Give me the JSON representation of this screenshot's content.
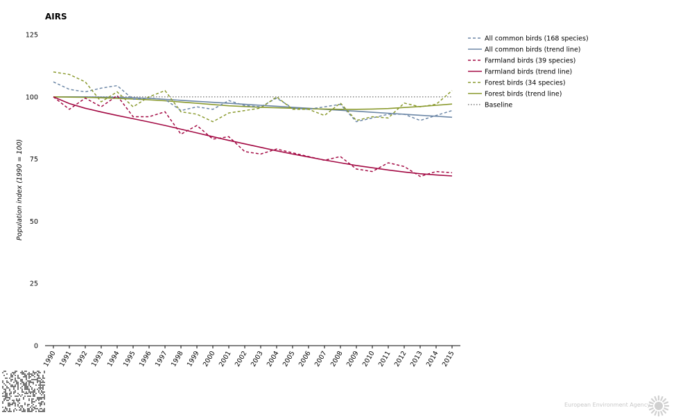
{
  "title": "AIRS",
  "footer": {
    "brand": "European Environment Agency"
  },
  "colors": {
    "all": "#6b86a6",
    "farmland": "#a30943",
    "forest": "#8a9a2e",
    "baseline": "#7a7a7a",
    "axis": "#000000",
    "logo": "#d0d0d0"
  },
  "chart_data": {
    "type": "line",
    "title": "AIRS",
    "xlabel": "",
    "ylabel": "Population index (1990 = 100)",
    "ylim": [
      0,
      125
    ],
    "yticks": [
      0,
      25,
      50,
      75,
      100,
      125
    ],
    "grid": false,
    "legend_position": "right",
    "x": [
      "1990",
      "1991",
      "1992",
      "1993",
      "1994",
      "1995",
      "1996",
      "1997",
      "1998",
      "1999",
      "2000",
      "2001",
      "2002",
      "2003",
      "2004",
      "2005",
      "2006",
      "2007",
      "2008",
      "2009",
      "2010",
      "2011",
      "2012",
      "2013",
      "2014",
      "2015"
    ],
    "series": [
      {
        "name": "All common birds (168 species)",
        "style": "dashed",
        "colorKey": "all",
        "values": [
          106,
          103,
          102,
          103.5,
          104.5,
          99,
          99.5,
          99,
          94.5,
          96,
          95,
          98.5,
          96.5,
          96,
          99.5,
          95.5,
          95,
          96,
          97,
          90,
          91.5,
          93,
          93,
          90.5,
          92.5,
          94.5
        ]
      },
      {
        "name": "All common birds (trend line)",
        "style": "solid",
        "colorKey": "all",
        "values": [
          100,
          100,
          100,
          99.9,
          99.8,
          99.6,
          99.4,
          99.0,
          98.6,
          98.2,
          97.8,
          97.4,
          97.0,
          96.6,
          96.2,
          95.8,
          95.4,
          95.0,
          94.6,
          94.2,
          93.8,
          93.4,
          93.0,
          92.6,
          92.2,
          91.8
        ]
      },
      {
        "name": "Farmland birds (39 species)",
        "style": "dashed",
        "colorKey": "farmland",
        "values": [
          100,
          95,
          99.5,
          96,
          100.5,
          92,
          92,
          94,
          85,
          88.5,
          83,
          84,
          78,
          77,
          79,
          77.5,
          76,
          74.5,
          76,
          71,
          70,
          73.5,
          72,
          68,
          70,
          69.5
        ]
      },
      {
        "name": "Farmland birds (trend line)",
        "style": "solid",
        "colorKey": "farmland",
        "values": [
          100,
          97.3,
          95.4,
          93.9,
          92.5,
          91.2,
          89.9,
          88.5,
          87,
          85.5,
          84,
          82.5,
          81.1,
          79.7,
          78.3,
          77,
          75.8,
          74.6,
          73.5,
          72.4,
          71.5,
          70.6,
          69.8,
          69.1,
          68.6,
          68.2
        ]
      },
      {
        "name": "Forest birds (34 species)",
        "style": "dashed",
        "colorKey": "forest",
        "values": [
          110,
          109,
          106,
          98,
          102,
          96,
          100,
          102.5,
          94,
          93,
          90,
          93.5,
          94.5,
          95.5,
          100,
          95,
          95,
          92.5,
          97.5,
          90.5,
          92,
          91.5,
          97.5,
          96,
          97,
          102.5
        ]
      },
      {
        "name": "Forest birds (trend line)",
        "style": "solid",
        "colorKey": "forest",
        "values": [
          100,
          99.9,
          99.8,
          99.6,
          99.4,
          99.1,
          98.8,
          98.4,
          97.9,
          97.4,
          96.9,
          96.4,
          96.1,
          95.8,
          95.6,
          95.4,
          95.2,
          95.1,
          95.0,
          95.0,
          95.1,
          95.3,
          95.7,
          96.1,
          96.6,
          97.1
        ]
      },
      {
        "name": "Baseline",
        "style": "dotted",
        "colorKey": "baseline",
        "values": [
          100,
          100,
          100,
          100,
          100,
          100,
          100,
          100,
          100,
          100,
          100,
          100,
          100,
          100,
          100,
          100,
          100,
          100,
          100,
          100,
          100,
          100,
          100,
          100,
          100,
          100
        ]
      }
    ]
  }
}
